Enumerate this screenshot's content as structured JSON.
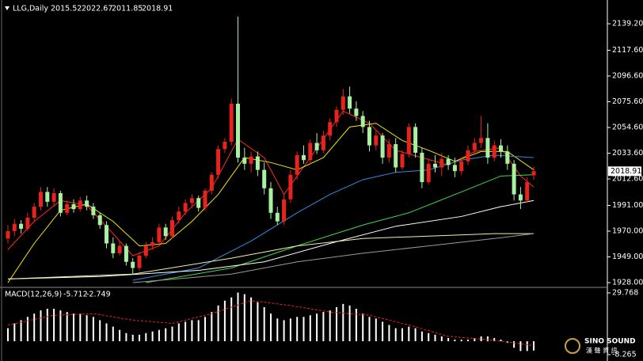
{
  "chart_data": {
    "type": "candlestick",
    "title": "LLG,Daily",
    "quote": [
      2015.52,
      2022.67,
      2011.85,
      2018.91
    ],
    "up_color": "#e8231d",
    "down_color": "#a9f0a0",
    "open": [
      1964,
      1970,
      1976,
      1972,
      1981,
      1990,
      2002,
      1994,
      2001,
      1985,
      1992,
      1988,
      1995,
      1990,
      1983,
      1975,
      1960,
      1952,
      1958,
      1945,
      1940,
      1950,
      1958,
      1961,
      1973,
      1966,
      1979,
      1986,
      1993,
      1997,
      1989,
      2003,
      2016,
      2037,
      2043,
      2074,
      2030,
      2025,
      2031,
      2020,
      2005,
      1985,
      1978,
      1996,
      2016,
      2032,
      2028,
      2042,
      2036,
      2048,
      2059,
      2069,
      2080,
      2070,
      2064,
      2055,
      2040,
      2048,
      2030,
      2041,
      2022,
      2033,
      2055,
      2034,
      2010,
      2025,
      2022,
      2029,
      2024,
      2019,
      2027,
      2036,
      2042,
      2046,
      2030,
      2040,
      2035,
      2025,
      2000,
      1995,
      2015.52
    ],
    "high": [
      1975,
      1980,
      1979,
      1985,
      1993,
      2006,
      2006,
      2005,
      2003,
      1995,
      1996,
      1998,
      1999,
      1993,
      1985,
      1978,
      1965,
      1962,
      1960,
      1948,
      1953,
      1961,
      1965,
      1976,
      1976,
      1982,
      1990,
      1996,
      2000,
      1999,
      2005,
      2018,
      2040,
      2046,
      2078,
      2145,
      2038,
      2035,
      2035,
      2026,
      2010,
      1990,
      2000,
      2020,
      2035,
      2040,
      2045,
      2050,
      2052,
      2062,
      2072,
      2086,
      2088,
      2076,
      2068,
      2060,
      2052,
      2050,
      2045,
      2046,
      2036,
      2058,
      2058,
      2038,
      2028,
      2032,
      2034,
      2032,
      2030,
      2030,
      2040,
      2046,
      2064,
      2058,
      2044,
      2045,
      2040,
      2028,
      2006,
      2014,
      2022.67
    ],
    "low": [
      1960,
      1966,
      1968,
      1970,
      1978,
      1987,
      1990,
      1990,
      1982,
      1983,
      1985,
      1986,
      1987,
      1980,
      1972,
      1956,
      1948,
      1950,
      1942,
      1935,
      1938,
      1948,
      1955,
      1958,
      1963,
      1964,
      1976,
      1983,
      1989,
      1986,
      1987,
      2000,
      2013,
      2034,
      2040,
      2026,
      2020,
      2018,
      2015,
      2000,
      1980,
      1975,
      1975,
      1993,
      2012,
      2025,
      2025,
      2033,
      2034,
      2044,
      2055,
      2065,
      2066,
      2060,
      2050,
      2035,
      2036,
      2025,
      2026,
      2018,
      2020,
      2030,
      2030,
      2005,
      2008,
      2018,
      2015,
      2020,
      2014,
      2016,
      2024,
      2032,
      2038,
      2025,
      2027,
      2030,
      2020,
      1995,
      1988,
      1993,
      2011.85
    ],
    "close": [
      1970,
      1976,
      1972,
      1981,
      1990,
      2002,
      1994,
      2001,
      1985,
      1992,
      1988,
      1995,
      1990,
      1983,
      1975,
      1960,
      1952,
      1958,
      1945,
      1940,
      1950,
      1958,
      1961,
      1973,
      1966,
      1979,
      1986,
      1993,
      1997,
      1989,
      2003,
      2016,
      2037,
      2043,
      2074,
      2030,
      2025,
      2031,
      2020,
      2005,
      1985,
      1978,
      1996,
      2016,
      2032,
      2028,
      2042,
      2036,
      2048,
      2059,
      2069,
      2080,
      2070,
      2064,
      2055,
      2040,
      2048,
      2030,
      2041,
      2022,
      2033,
      2055,
      2034,
      2010,
      2025,
      2022,
      2029,
      2024,
      2019,
      2027,
      2036,
      2042,
      2046,
      2030,
      2040,
      2035,
      2025,
      2000,
      1995,
      2010,
      2018.91
    ],
    "moving_averages": [
      {
        "color": "#ff2a1a",
        "x": [
          1,
          5,
          9,
          13,
          17,
          20,
          24,
          28,
          32,
          36,
          40,
          43,
          47,
          52,
          56,
          60,
          64,
          68,
          72,
          76,
          79,
          81
        ],
        "values": [
          1955,
          1978,
          1995,
          1991,
          1968,
          1950,
          1958,
          1985,
          2005,
          2045,
          2030,
          2000,
          2030,
          2068,
          2058,
          2036,
          2030,
          2024,
          2035,
          2038,
          2015,
          2006
        ]
      },
      {
        "color": "#f2e600",
        "x": [
          1,
          5,
          9,
          13,
          17,
          21,
          25,
          29,
          33,
          37,
          41,
          45,
          49,
          53,
          57,
          61,
          65,
          69,
          73,
          77,
          81
        ],
        "values": [
          1928,
          1960,
          1987,
          1992,
          1978,
          1958,
          1960,
          1978,
          2000,
          2030,
          2026,
          2020,
          2030,
          2055,
          2058,
          2044,
          2036,
          2027,
          2035,
          2035,
          2020
        ]
      },
      {
        "color": "#2f8fe0",
        "x": [
          20,
          30,
          38,
          45,
          50,
          55,
          60,
          65,
          70,
          75,
          81
        ],
        "values": [
          1930,
          1940,
          1962,
          1985,
          2000,
          2012,
          2018,
          2020,
          2028,
          2032,
          2030
        ]
      },
      {
        "color": "#3fdc4a",
        "x": [
          22,
          35,
          45,
          55,
          62,
          70,
          76,
          81
        ],
        "values": [
          1928,
          1940,
          1958,
          1975,
          1985,
          2002,
          2015,
          2016
        ]
      },
      {
        "color": "#ffffff",
        "x": [
          1,
          15,
          30,
          40,
          50,
          60,
          70,
          76,
          81
        ],
        "values": [
          1931,
          1933,
          1938,
          1945,
          1960,
          1974,
          1982,
          1990,
          1995
        ]
      },
      {
        "color": "#f4f0a8",
        "x": [
          1,
          20,
          35,
          45,
          55,
          65,
          75,
          81
        ],
        "values": [
          1931,
          1935,
          1948,
          1958,
          1964,
          1966,
          1968,
          1968
        ]
      },
      {
        "color": "#9a9a9a",
        "x": [
          20,
          35,
          45,
          55,
          65,
          75,
          81
        ],
        "values": [
          1928,
          1935,
          1945,
          1952,
          1958,
          1964,
          1968
        ]
      }
    ],
    "ylim": [
      1924.8,
      2157.3
    ],
    "yticks": [
      {
        "value": 2139.2,
        "label": "2139.20"
      },
      {
        "value": 2117.6,
        "label": "2117.60"
      },
      {
        "value": 2096.6,
        "label": "2096.60"
      },
      {
        "value": 2075.6,
        "label": "2075.60"
      },
      {
        "value": 2054.6,
        "label": "2054.60"
      },
      {
        "value": 2033.6,
        "label": "2033.60"
      },
      {
        "value": 2012.6,
        "label": "2012.60"
      },
      {
        "value": 1991,
        "label": "1991.00"
      },
      {
        "value": 1970,
        "label": "1970.00"
      },
      {
        "value": 1949,
        "label": "1949.00"
      },
      {
        "value": 1928,
        "label": "1928.00"
      }
    ],
    "macd": {
      "title": "MACD(12,26,9)",
      "last": [
        -5.712,
        -2.749
      ],
      "bar_color": "#ffffff",
      "signal_color": "#e8231d",
      "values": [
        8,
        11,
        13,
        15,
        17,
        19,
        20,
        20,
        19,
        18,
        17,
        17,
        16,
        15,
        13,
        11,
        9,
        7,
        5,
        4,
        4,
        5,
        6,
        7,
        8,
        9,
        11,
        12,
        13,
        13,
        15,
        18,
        22,
        25,
        27,
        30,
        29,
        27,
        24,
        21,
        17,
        14,
        13,
        14,
        15,
        15,
        16,
        17,
        18,
        19,
        21,
        23,
        22,
        20,
        17,
        15,
        14,
        12,
        10,
        8,
        8,
        9,
        8,
        6,
        5,
        4,
        3,
        2,
        1,
        1,
        1,
        2,
        3,
        3,
        2,
        1,
        -1,
        -4,
        -6,
        -6,
        -5.712
      ],
      "signal_x": [
        1,
        8,
        14,
        20,
        26,
        32,
        38,
        44,
        50,
        56,
        62,
        68,
        74,
        78,
        81
      ],
      "signal": [
        10,
        16,
        17,
        13,
        11,
        17,
        25,
        22,
        18,
        16,
        10,
        3,
        1,
        -1,
        -2.749
      ],
      "ylim": [
        -11.68,
        32.2
      ],
      "yticks": [
        29.768,
        -8.265
      ]
    },
    "watermark": [
      "SINO SOUND",
      "漢 聲 資 訊"
    ]
  }
}
